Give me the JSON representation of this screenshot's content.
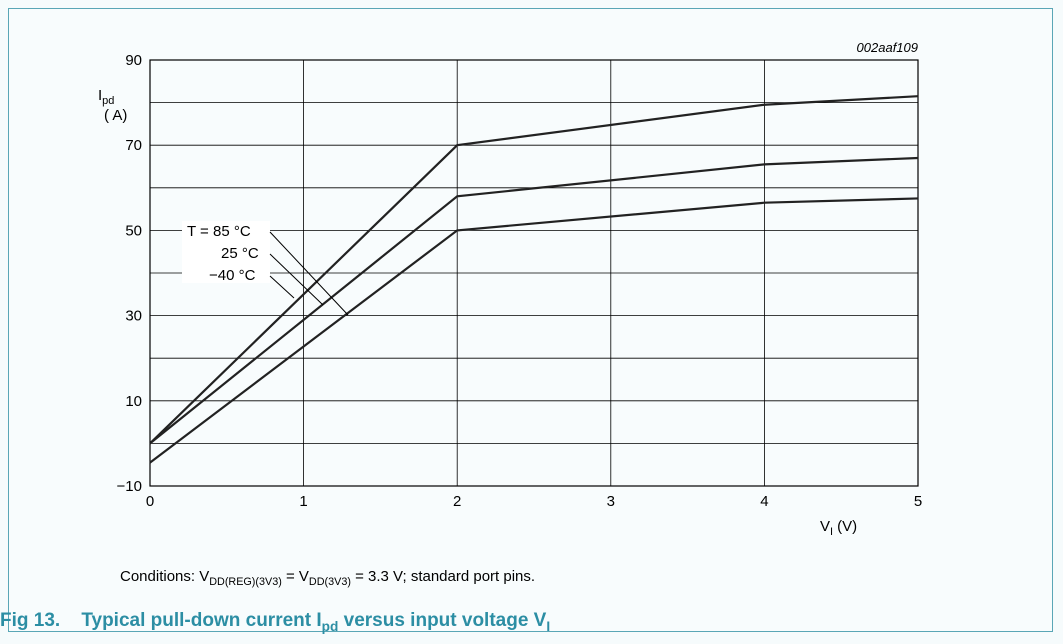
{
  "figure": {
    "caption_prefix": "Fig 13.",
    "caption_main": "Typical pull-down current I",
    "caption_sub1": "pd",
    "caption_mid": " versus input voltage V",
    "caption_sub2": "I",
    "conditions_pre": "Conditions: V",
    "conditions_sub1": "DD(REG)(3V3)",
    "conditions_mid": " = V",
    "conditions_sub2": "DD(3V3)",
    "conditions_post": " = 3.3 V; standard port pins.",
    "code": "002aaf109"
  },
  "chart_data": {
    "type": "line",
    "title": "",
    "xlabel_main": "V",
    "xlabel_sub": "I",
    "xlabel_unit": "(V)",
    "ylabel_main": "I",
    "ylabel_sub": "pd",
    "ylabel_unit": "( A)",
    "xlim": [
      0,
      5
    ],
    "ylim": [
      -10,
      90
    ],
    "xticks": [
      "0",
      "1",
      "2",
      "3",
      "4",
      "5"
    ],
    "yticks": [
      "90",
      "70",
      "50",
      "30",
      "10",
      "−10"
    ],
    "grid": true,
    "series": [
      {
        "name": "−40 °C",
        "x": [
          0,
          2,
          4,
          5
        ],
        "y": [
          0,
          70,
          79.5,
          81.5
        ]
      },
      {
        "name": "25 °C",
        "x": [
          0,
          2,
          4,
          5
        ],
        "y": [
          0,
          58,
          65.5,
          67
        ]
      },
      {
        "name": "T = 85 °C",
        "x": [
          0,
          2,
          4,
          5
        ],
        "y": [
          -4.5,
          50,
          56.5,
          57.5
        ]
      }
    ],
    "line_color": "#222222"
  }
}
